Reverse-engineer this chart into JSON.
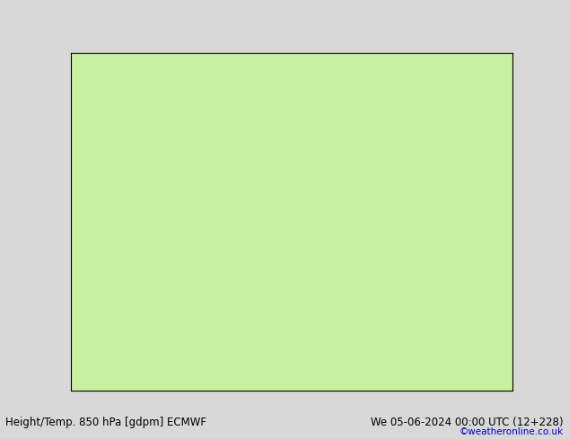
{
  "title_left": "Height/Temp. 850 hPa [gdpm] ECMWF",
  "title_right": "We 05-06-2024 00:00 UTC (12+228)",
  "credit": "©weatheronline.co.uk",
  "fig_bgcolor": "#d8d8d8",
  "land_color": "#c8f0a0",
  "ocean_color": "#e0e0e0",
  "border_color": "#aaaaaa",
  "coast_color": "#888888",
  "fig_width": 6.34,
  "fig_height": 4.9,
  "dpi": 100,
  "text_color": "#000000",
  "credit_color": "#0000bb",
  "title_fontsize": 8.5,
  "credit_fontsize": 7.5,
  "map_extent": [
    -20,
    55,
    -40,
    42
  ]
}
